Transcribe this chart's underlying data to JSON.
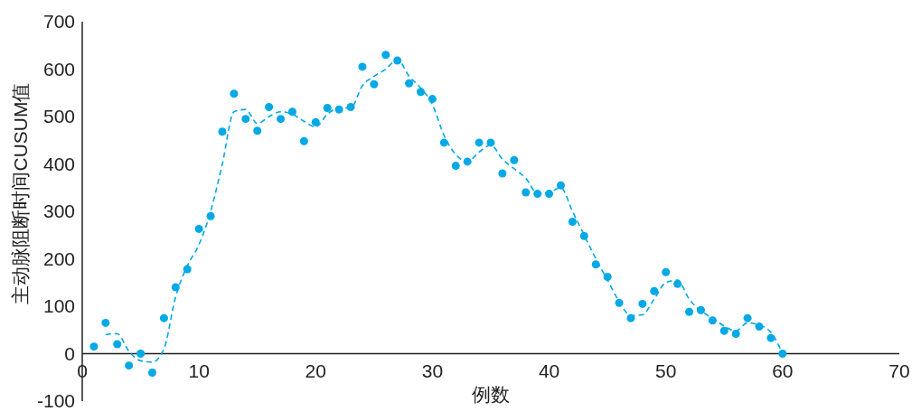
{
  "chart_data": {
    "type": "scatter",
    "xlabel": "例数",
    "ylabel": "主动脉阻断时间CUSUM值",
    "xlim": [
      0,
      70
    ],
    "xticks": [
      0,
      10,
      20,
      30,
      40,
      50,
      60,
      70
    ],
    "ylim": [
      -100,
      700
    ],
    "yticks": [
      -100,
      0,
      100,
      200,
      300,
      400,
      500,
      600,
      700
    ],
    "grid": false,
    "series": [
      {
        "marker": "circle",
        "color": "#00a9e6",
        "x": [
          1,
          2,
          3,
          4,
          5,
          6,
          7,
          8,
          9,
          10,
          11,
          12,
          13,
          14,
          15,
          16,
          17,
          18,
          19,
          20,
          21,
          22,
          23,
          24,
          25,
          26,
          27,
          28,
          29,
          30,
          31,
          32,
          33,
          34,
          35,
          36,
          37,
          38,
          39,
          40,
          41,
          42,
          43,
          44,
          45,
          46,
          47,
          48,
          49,
          50,
          51,
          52,
          53,
          54,
          55,
          56,
          57,
          58,
          59,
          60
        ],
        "values": [
          15,
          65,
          20,
          -25,
          0,
          -40,
          75,
          140,
          178,
          263,
          290,
          468,
          548,
          495,
          470,
          520,
          495,
          510,
          448,
          488,
          518,
          515,
          520,
          605,
          568,
          630,
          618,
          570,
          552,
          537,
          445,
          396,
          405,
          445,
          445,
          380,
          408,
          340,
          337,
          337,
          355,
          278,
          248,
          188,
          162,
          107,
          75,
          105,
          132,
          172,
          147,
          88,
          92,
          70,
          48,
          42,
          75,
          57,
          33,
          0
        ]
      },
      {
        "type": "line",
        "line_style": "dashed",
        "marker": "none",
        "color": "#00a9e6",
        "x": [
          2,
          3,
          4,
          5,
          6,
          7,
          8,
          9,
          10,
          11,
          12,
          13,
          14,
          15,
          16,
          17,
          18,
          19,
          20,
          21,
          22,
          23,
          24,
          25,
          26,
          27,
          28,
          29,
          30,
          31,
          32,
          33,
          34,
          35,
          36,
          37,
          38,
          39,
          40,
          41,
          42,
          43,
          44,
          45,
          46,
          47,
          48,
          49,
          50,
          51,
          52,
          53,
          54,
          55,
          56,
          57,
          58,
          59,
          60
        ],
        "values": [
          40,
          42,
          5,
          -15,
          -18,
          10,
          120,
          185,
          230,
          300,
          400,
          510,
          515,
          485,
          500,
          510,
          505,
          490,
          478,
          505,
          518,
          518,
          565,
          585,
          600,
          620,
          585,
          560,
          525,
          460,
          420,
          405,
          425,
          440,
          410,
          390,
          370,
          338,
          340,
          350,
          300,
          250,
          200,
          155,
          110,
          80,
          82,
          115,
          150,
          155,
          115,
          90,
          75,
          58,
          48,
          65,
          60,
          45,
          0
        ]
      }
    ]
  }
}
